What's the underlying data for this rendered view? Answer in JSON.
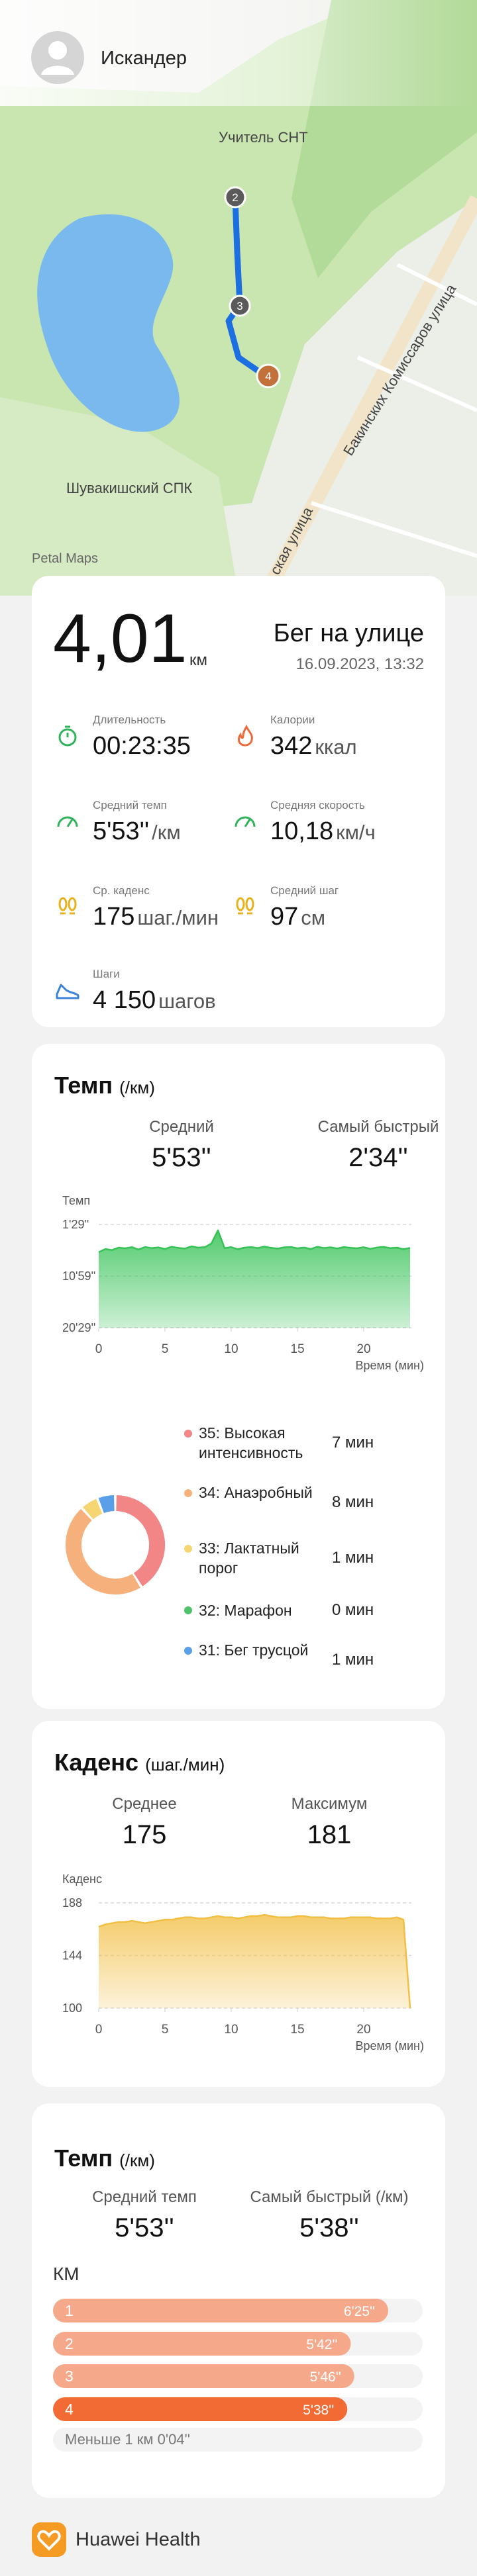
{
  "header": {
    "user_name": "Искандер"
  },
  "map": {
    "labels": [
      "Учитель СНТ",
      "Шувакишский СПК",
      "Бакинских Комиссаров улица",
      "ская улица",
      "Petal Maps"
    ],
    "markers": [
      "2",
      "3",
      "4"
    ]
  },
  "summary": {
    "distance": "4,01",
    "distance_unit": "км",
    "activity": "Бег на улице",
    "datetime": "16.09.2023, 13:32",
    "metrics": [
      {
        "label": "Длительность",
        "value": "00:23:35"
      },
      {
        "label": "Калории",
        "value": "342",
        "unit": "ккал"
      },
      {
        "label": "Средний темп",
        "value": "5'53''",
        "unit": "/км"
      },
      {
        "label": "Средняя скорость",
        "value": "10,18",
        "unit": "км/ч"
      },
      {
        "label": "Ср. каденс",
        "value": "175",
        "unit": "шаг./мин"
      },
      {
        "label": "Средний шаг",
        "value": "97",
        "unit": "см"
      },
      {
        "label": "Шаги",
        "value": "4 150",
        "unit": "шагов"
      }
    ]
  },
  "pace": {
    "title": "Темп",
    "unit": "(/км)",
    "stats": [
      {
        "label": "Средний",
        "value": "5'53''"
      },
      {
        "label": "Самый быстрый",
        "value": "2'34''"
      }
    ],
    "chart": {
      "type": "area",
      "y_label": "Темп",
      "x_label": "Время (мин)",
      "color": "#34c255",
      "grid": true,
      "x": [
        0,
        0.5,
        1,
        1.5,
        2,
        2.5,
        3,
        3.5,
        4,
        4.5,
        5,
        5.5,
        6,
        6.5,
        7,
        7.5,
        8,
        8.5,
        9,
        9.5,
        10,
        10.5,
        11,
        11.5,
        12,
        12.5,
        13,
        13.5,
        14,
        14.5,
        15,
        15.5,
        16,
        16.5,
        17,
        17.5,
        18,
        18.5,
        19,
        19.5,
        20,
        20.5,
        21,
        21.5,
        22,
        22.5,
        23,
        23.5
      ],
      "values": [
        395,
        360,
        372,
        345,
        352,
        340,
        365,
        338,
        350,
        342,
        360,
        335,
        348,
        355,
        330,
        345,
        340,
        300,
        154,
        350,
        340,
        362,
        345,
        338,
        350,
        333,
        347,
        356,
        341,
        338,
        352,
        344,
        360,
        335,
        349,
        341,
        355,
        338,
        346,
        352,
        340,
        358,
        343,
        337,
        350,
        345,
        362,
        348
      ],
      "xlim": [
        0,
        23.6
      ],
      "xticks": [
        0,
        5,
        10,
        15,
        20
      ],
      "ylim": [
        1229,
        89
      ],
      "yticks": [
        {
          "value": 89,
          "label": "1'29''"
        },
        {
          "value": 659,
          "label": "10'59''"
        },
        {
          "value": 1229,
          "label": "20'29''"
        }
      ]
    },
    "zones": {
      "type": "donut",
      "categories": [
        "35: Высокая интенсивность",
        "34: Анаэробный",
        "33: Лактатный порог",
        "32: Марафон",
        "31: Бег трусцой"
      ],
      "values": [
        7,
        8,
        1,
        0,
        1
      ],
      "value_labels": [
        "7 мин",
        "8 мин",
        "1 мин",
        "0 мин",
        "1 мин"
      ],
      "colors": [
        "#f28585",
        "#f5b07c",
        "#f6d673",
        "#4fc16a",
        "#5a9fe8"
      ]
    }
  },
  "cadence": {
    "title": "Каденс",
    "unit": "(шаг./мин)",
    "stats": [
      {
        "label": "Среднее",
        "value": "175"
      },
      {
        "label": "Максимум",
        "value": "181"
      }
    ],
    "chart": {
      "type": "area",
      "y_label": "Каденс",
      "x_label": "Время (мин)",
      "color": "#f2bf45",
      "grid": true,
      "x": [
        0,
        0.5,
        1,
        1.5,
        2,
        2.5,
        3,
        3.5,
        4,
        4.5,
        5,
        5.5,
        6,
        6.5,
        7,
        7.5,
        8,
        8.5,
        9,
        9.5,
        10,
        10.5,
        11,
        11.5,
        12,
        12.5,
        13,
        13.5,
        14,
        14.5,
        15,
        15.5,
        16,
        16.5,
        17,
        17.5,
        18,
        18.5,
        19,
        19.5,
        20,
        20.5,
        21,
        21.5,
        22,
        22.5,
        23,
        23.5
      ],
      "values": [
        168,
        170,
        171,
        172,
        172,
        173,
        172,
        171,
        172,
        173,
        174,
        174,
        175,
        176,
        176,
        175,
        175,
        176,
        177,
        176,
        176,
        175,
        176,
        177,
        177,
        178,
        177,
        176,
        176,
        176,
        177,
        177,
        176,
        176,
        176,
        175,
        175,
        175,
        176,
        176,
        176,
        176,
        175,
        175,
        175,
        176,
        174,
        100
      ],
      "xlim": [
        0,
        23.6
      ],
      "xticks": [
        0,
        5,
        10,
        15,
        20
      ],
      "ylim": [
        100,
        188
      ],
      "yticks": [
        100,
        144,
        188
      ]
    }
  },
  "splits": {
    "title": "Темп",
    "unit": "(/км)",
    "stats": [
      {
        "label": "Средний темп",
        "value": "5'53''"
      },
      {
        "label": "Самый быстрый (/км)",
        "value": "5'38''"
      }
    ],
    "column_label": "КМ",
    "chart": {
      "type": "bar",
      "categories": [
        "1",
        "2",
        "3",
        "4"
      ],
      "values": [
        385,
        342,
        346,
        338
      ],
      "value_labels": [
        "6'25''",
        "5'42''",
        "5'46''",
        "5'38''"
      ],
      "colors": [
        "#f5a98a",
        "#f5a98a",
        "#f5a98a",
        "#f26b35"
      ]
    },
    "remainder": "Меньше 1 км 0'04''"
  },
  "footer": {
    "brand": "Huawei Health"
  }
}
